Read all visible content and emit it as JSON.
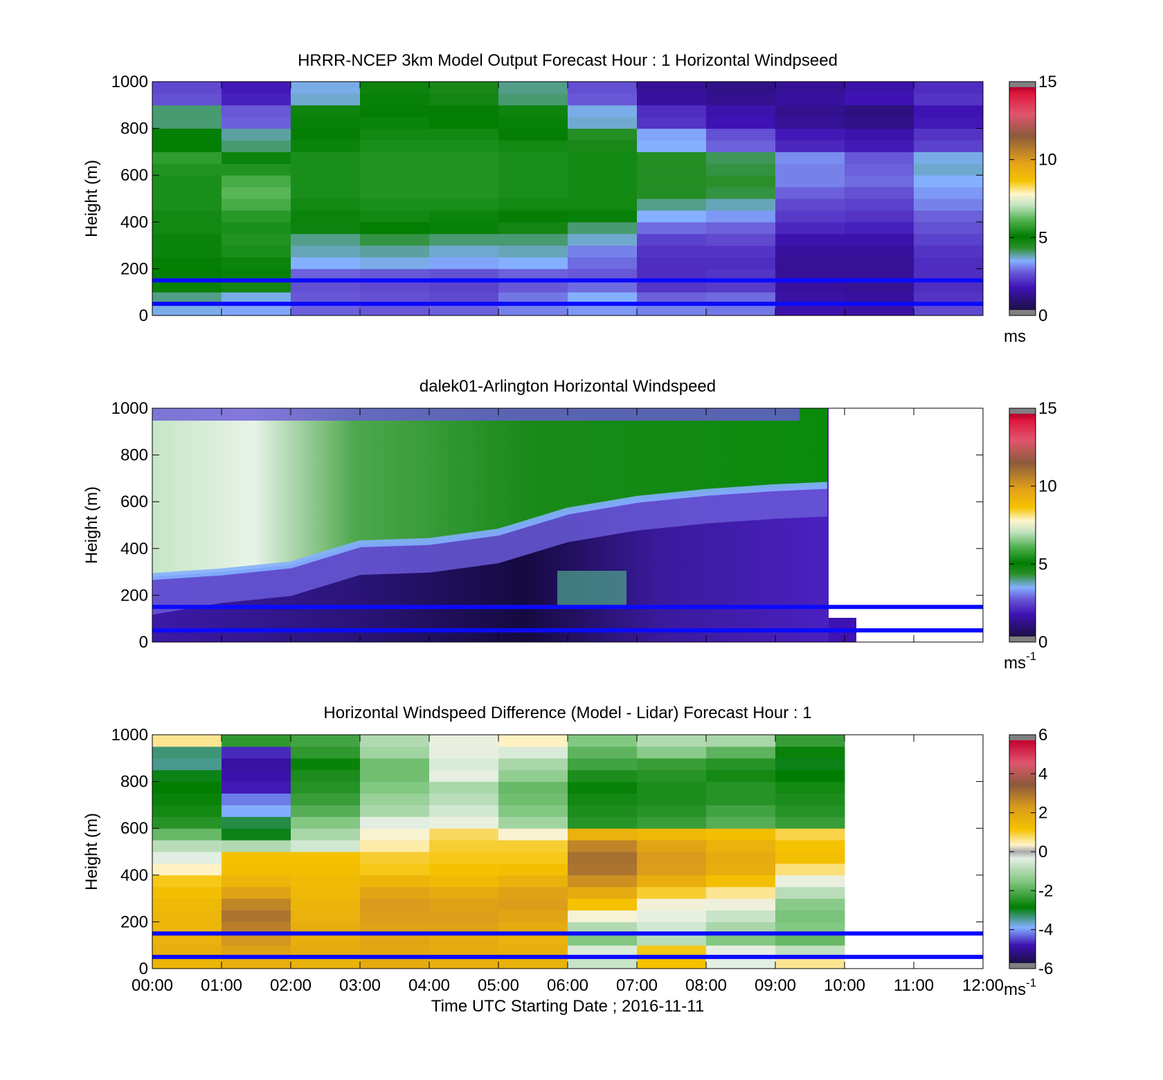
{
  "chart_data": [
    {
      "type": "heatmap",
      "title": "HRRR-NCEP 3km Model Output   Forecast Hour : 1 Horizontal Windpseed",
      "ylabel": "Height (m)",
      "yticks": [
        "0",
        "200",
        "400",
        "600",
        "800",
        "1000"
      ],
      "ylim": [
        0,
        1000
      ],
      "xlim": [
        0,
        12
      ],
      "colorbar": {
        "ticks": [
          "0",
          "5",
          "10",
          "15"
        ],
        "range": [
          0,
          15
        ],
        "unit": "ms",
        "unit_sup": ""
      },
      "reference_lines_m": [
        150,
        50
      ],
      "heights_m": [
        25,
        75,
        125,
        175,
        225,
        275,
        325,
        375,
        425,
        475,
        525,
        575,
        625,
        675,
        725,
        775,
        825,
        875,
        925,
        975
      ],
      "hours": [
        0.5,
        1.5,
        2.5,
        3.5,
        4.5,
        5.5,
        6.5,
        7.5,
        8.5,
        9.5,
        10.5,
        11.5
      ],
      "z": [
        [
          3.4,
          3.2,
          2.6,
          2.5,
          2.6,
          2.9,
          3.1,
          2.9,
          2.8,
          1.4,
          1.3,
          2.3
        ],
        [
          3.8,
          3.4,
          2.5,
          2.4,
          2.3,
          2.8,
          3.3,
          2.6,
          2.7,
          1.3,
          1.2,
          2.0
        ],
        [
          4.8,
          4.6,
          2.4,
          2.3,
          2.2,
          2.5,
          2.7,
          2.0,
          2.1,
          1.2,
          1.1,
          1.9
        ],
        [
          4.9,
          4.8,
          2.6,
          2.5,
          2.4,
          2.6,
          2.5,
          1.9,
          2.0,
          1.1,
          1.1,
          1.9
        ],
        [
          5.0,
          5.1,
          3.3,
          3.4,
          3.2,
          3.3,
          2.7,
          1.9,
          1.9,
          1.1,
          1.1,
          1.9
        ],
        [
          5.1,
          5.3,
          3.6,
          3.7,
          3.5,
          3.6,
          2.9,
          2.0,
          2.0,
          1.2,
          1.2,
          2.0
        ],
        [
          5.1,
          5.4,
          3.8,
          4.1,
          3.9,
          3.9,
          3.5,
          2.2,
          2.3,
          1.4,
          1.4,
          2.2
        ],
        [
          5.2,
          5.3,
          4.7,
          4.9,
          4.8,
          4.6,
          3.9,
          2.7,
          2.6,
          1.8,
          1.7,
          2.4
        ],
        [
          5.2,
          5.5,
          5.1,
          5.2,
          5.1,
          5.0,
          4.8,
          3.3,
          3.1,
          2.1,
          2.0,
          2.6
        ],
        [
          5.3,
          5.9,
          5.2,
          5.3,
          5.3,
          5.2,
          5.2,
          3.8,
          3.6,
          2.3,
          2.2,
          2.9
        ],
        [
          5.3,
          6.1,
          5.3,
          5.4,
          5.4,
          5.3,
          5.2,
          4.3,
          4.1,
          2.6,
          2.4,
          3.1
        ],
        [
          5.3,
          5.9,
          5.3,
          5.4,
          5.4,
          5.3,
          5.2,
          4.3,
          4.2,
          2.9,
          2.7,
          3.3
        ],
        [
          5.4,
          5.4,
          5.3,
          5.4,
          5.4,
          5.3,
          5.2,
          4.3,
          4.1,
          2.9,
          2.6,
          3.5
        ],
        [
          5.6,
          5.1,
          5.3,
          5.4,
          5.4,
          5.3,
          5.2,
          4.3,
          4.0,
          3.0,
          2.5,
          3.4
        ],
        [
          5.0,
          3.9,
          5.1,
          5.3,
          5.3,
          5.2,
          4.5,
          3.3,
          2.6,
          1.8,
          1.6,
          2.2
        ],
        [
          5.0,
          3.7,
          5.0,
          5.2,
          5.2,
          5.0,
          4.3,
          3.2,
          2.4,
          1.6,
          1.4,
          2.0
        ],
        [
          3.9,
          2.6,
          4.8,
          5.1,
          5.0,
          4.8,
          3.5,
          2.0,
          1.5,
          1.1,
          0.9,
          1.6
        ],
        [
          3.9,
          2.5,
          4.7,
          5.0,
          4.9,
          4.7,
          3.4,
          1.9,
          1.4,
          1.0,
          0.8,
          1.5
        ],
        [
          2.4,
          1.7,
          3.5,
          4.8,
          4.6,
          3.9,
          2.5,
          1.2,
          1.0,
          1.2,
          1.5,
          2.0
        ],
        [
          2.3,
          1.6,
          3.4,
          4.7,
          4.5,
          3.8,
          2.4,
          1.1,
          0.9,
          1.1,
          1.4,
          1.9
        ]
      ]
    },
    {
      "type": "heatmap",
      "title": "dalek01-Arlington  Horizontal Windspeed",
      "ylabel": "Height (m)",
      "yticks": [
        "0",
        "200",
        "400",
        "600",
        "800",
        "1000"
      ],
      "ylim": [
        0,
        1000
      ],
      "xlim": [
        0,
        12
      ],
      "colorbar": {
        "ticks": [
          "0",
          "5",
          "10",
          "15"
        ],
        "range": [
          0,
          15
        ],
        "unit": "ms",
        "unit_sup": "-1"
      },
      "reference_lines_m": [
        150,
        50
      ],
      "data_extent_hours": 9.75,
      "low_level_jet_boundary": {
        "hours": [
          0,
          1,
          2,
          3,
          4,
          5,
          6,
          7,
          8,
          9,
          9.75
        ],
        "heights_m": [
          280,
          300,
          330,
          420,
          430,
          470,
          560,
          610,
          640,
          660,
          670
        ]
      },
      "upper_speed_peak": {
        "hour": 0.9,
        "height_m": 700,
        "value": 7.3
      }
    },
    {
      "type": "heatmap",
      "title": "Horizontal Windspeed Difference (Model - Lidar) Forecast Hour : 1",
      "ylabel": "Height (m)",
      "xlabel": "Time UTC  Starting Date ; 2016-11-11",
      "yticks": [
        "0",
        "200",
        "400",
        "600",
        "800",
        "1000"
      ],
      "xticks": [
        "00:00",
        "01:00",
        "02:00",
        "03:00",
        "04:00",
        "05:00",
        "06:00",
        "07:00",
        "08:00",
        "09:00",
        "10:00",
        "11:00",
        "12:00"
      ],
      "ylim": [
        0,
        1000
      ],
      "xlim": [
        0,
        12
      ],
      "colorbar": {
        "ticks": [
          "-6",
          "-4",
          "-2",
          "0",
          "2",
          "4",
          "6"
        ],
        "range": [
          -6,
          6
        ],
        "unit": "ms",
        "unit_sup": "-1"
      },
      "reference_lines_m": [
        150,
        50
      ],
      "heights_m": [
        25,
        75,
        125,
        175,
        225,
        275,
        325,
        375,
        425,
        475,
        525,
        575,
        625,
        675,
        725,
        775,
        825,
        875,
        925,
        975
      ],
      "hours": [
        0.5,
        1.5,
        2.5,
        3.5,
        4.5,
        5.5,
        6.5,
        7.5,
        8.5,
        9.5
      ],
      "z": [
        [
          1.6,
          1.8,
          1.7,
          1.9,
          1.8,
          1.7,
          -0.7,
          1.2,
          -0.4,
          0.6
        ],
        [
          1.8,
          2.2,
          1.9,
          2.0,
          1.9,
          1.8,
          -0.5,
          1.1,
          -0.3,
          -0.8
        ],
        [
          1.7,
          2.5,
          1.8,
          2.1,
          1.9,
          1.7,
          -1.6,
          -0.9,
          -1.6,
          -1.9
        ],
        [
          1.6,
          2.9,
          1.8,
          2.2,
          2.2,
          1.9,
          -1.0,
          -0.6,
          -1.1,
          -1.6
        ],
        [
          1.6,
          3.1,
          1.7,
          2.3,
          2.3,
          2.1,
          0.1,
          -0.3,
          -0.7,
          -1.7
        ],
        [
          1.5,
          2.8,
          1.6,
          2.4,
          2.2,
          2.3,
          1.2,
          0.0,
          -0.1,
          -1.5
        ],
        [
          1.3,
          2.2,
          1.5,
          2.1,
          1.9,
          2.2,
          1.9,
          1.0,
          0.6,
          -0.9
        ],
        [
          1.1,
          1.6,
          1.4,
          1.6,
          1.4,
          1.7,
          2.6,
          1.8,
          1.3,
          -0.2
        ],
        [
          0.4,
          1.3,
          1.3,
          1.1,
          1.2,
          1.3,
          3.1,
          2.3,
          1.8,
          0.7
        ],
        [
          -0.4,
          1.2,
          1.2,
          1.0,
          1.1,
          1.1,
          3.2,
          2.4,
          1.9,
          1.3
        ],
        [
          -0.9,
          -1.0,
          -0.6,
          0.5,
          1.0,
          1.0,
          2.8,
          2.1,
          1.7,
          1.2
        ],
        [
          -1.9,
          -3.1,
          -1.1,
          0.2,
          0.8,
          0.2,
          1.7,
          1.5,
          1.3,
          0.9
        ],
        [
          -2.6,
          -3.3,
          -1.6,
          -0.4,
          -0.2,
          -1.2,
          -2.6,
          -2.4,
          -2.1,
          -2.4
        ],
        [
          -2.8,
          -4.1,
          -2.1,
          -1.1,
          -0.6,
          -1.6,
          -2.7,
          -2.6,
          -2.3,
          -2.6
        ],
        [
          -2.9,
          -4.4,
          -2.4,
          -1.3,
          -0.9,
          -1.8,
          -2.8,
          -2.7,
          -2.6,
          -2.7
        ],
        [
          -3.0,
          -5.0,
          -2.6,
          -1.6,
          -1.1,
          -1.9,
          -2.9,
          -2.7,
          -2.6,
          -2.8
        ],
        [
          -3.1,
          -5.1,
          -2.7,
          -1.8,
          -0.3,
          -1.4,
          -2.7,
          -2.6,
          -2.8,
          -3.0
        ],
        [
          -3.6,
          -5.2,
          -2.9,
          -1.8,
          -0.5,
          -1.1,
          -2.3,
          -2.4,
          -2.6,
          -3.1
        ],
        [
          -3.5,
          -4.9,
          -2.5,
          -1.2,
          -0.3,
          -0.5,
          -2.0,
          -1.5,
          -2.0,
          -2.9
        ],
        [
          0.6,
          -2.5,
          -2.3,
          -1.0,
          -0.2,
          0.4,
          -1.6,
          -1.0,
          -1.1,
          -2.4
        ]
      ]
    }
  ]
}
